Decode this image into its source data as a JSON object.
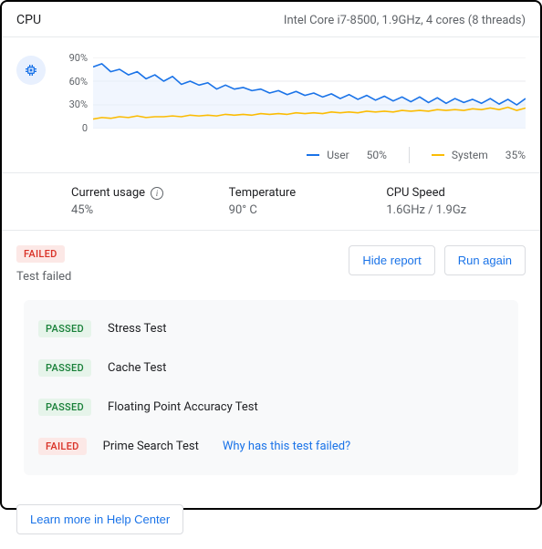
{
  "header": {
    "title": "CPU",
    "subtitle": "Intel Core i7-8500, 1.9GHz, 4 cores (8 threads)"
  },
  "chart": {
    "type": "line",
    "y_ticks": [
      "90%",
      "60%",
      "30%",
      "0"
    ],
    "ylim": [
      0,
      90
    ],
    "background_color": "#ffffff",
    "grid_color": "#e8eaed",
    "area_fill": "#e8f0fe",
    "area_fill_opacity": 0.6,
    "series": [
      {
        "name": "User",
        "legend_value": "50%",
        "color": "#1a73e8",
        "line_width": 1.6,
        "values": [
          78,
          82,
          72,
          75,
          68,
          72,
          63,
          68,
          60,
          66,
          56,
          60,
          55,
          58,
          50,
          55,
          50,
          52,
          48,
          50,
          45,
          48,
          43,
          47,
          42,
          45,
          40,
          44,
          38,
          43,
          37,
          42,
          36,
          41,
          35,
          40,
          34,
          40,
          33,
          39,
          32,
          38,
          33,
          37,
          32,
          38,
          31,
          37,
          30,
          38
        ]
      },
      {
        "name": "System",
        "legend_value": "35%",
        "color": "#fbbc04",
        "line_width": 1.6,
        "values": [
          12,
          14,
          13,
          15,
          14,
          16,
          14,
          15,
          15,
          16,
          15,
          17,
          16,
          17,
          16,
          18,
          17,
          18,
          17,
          19,
          18,
          19,
          18,
          20,
          19,
          20,
          19,
          21,
          20,
          21,
          20,
          22,
          21,
          22,
          21,
          23,
          22,
          23,
          22,
          24,
          23,
          24,
          23,
          25,
          24,
          26,
          24,
          27,
          23,
          26
        ]
      }
    ]
  },
  "stats": {
    "current_usage": {
      "label": "Current usage",
      "value": "45%"
    },
    "temperature": {
      "label": "Temperature",
      "value": "90° C"
    },
    "cpu_speed": {
      "label": "CPU Speed",
      "value": "1.6GHz / 1.9Gz"
    }
  },
  "test": {
    "status_badge": "FAILED",
    "status_text": "Test failed",
    "hide_report_label": "Hide report",
    "run_again_label": "Run again",
    "rows": [
      {
        "badge": "PASSED",
        "name": "Stress Test"
      },
      {
        "badge": "PASSED",
        "name": "Cache Test"
      },
      {
        "badge": "PASSED",
        "name": "Floating Point Accuracy Test"
      },
      {
        "badge": "FAILED",
        "name": "Prime Search Test",
        "link": "Why has this test failed?"
      }
    ]
  },
  "footer": {
    "learn_more_label": "Learn more in Help Center"
  },
  "colors": {
    "passed_bg": "#e6f4ea",
    "passed_fg": "#188038",
    "failed_bg": "#fce8e6",
    "failed_fg": "#d93025",
    "link": "#1a73e8"
  }
}
